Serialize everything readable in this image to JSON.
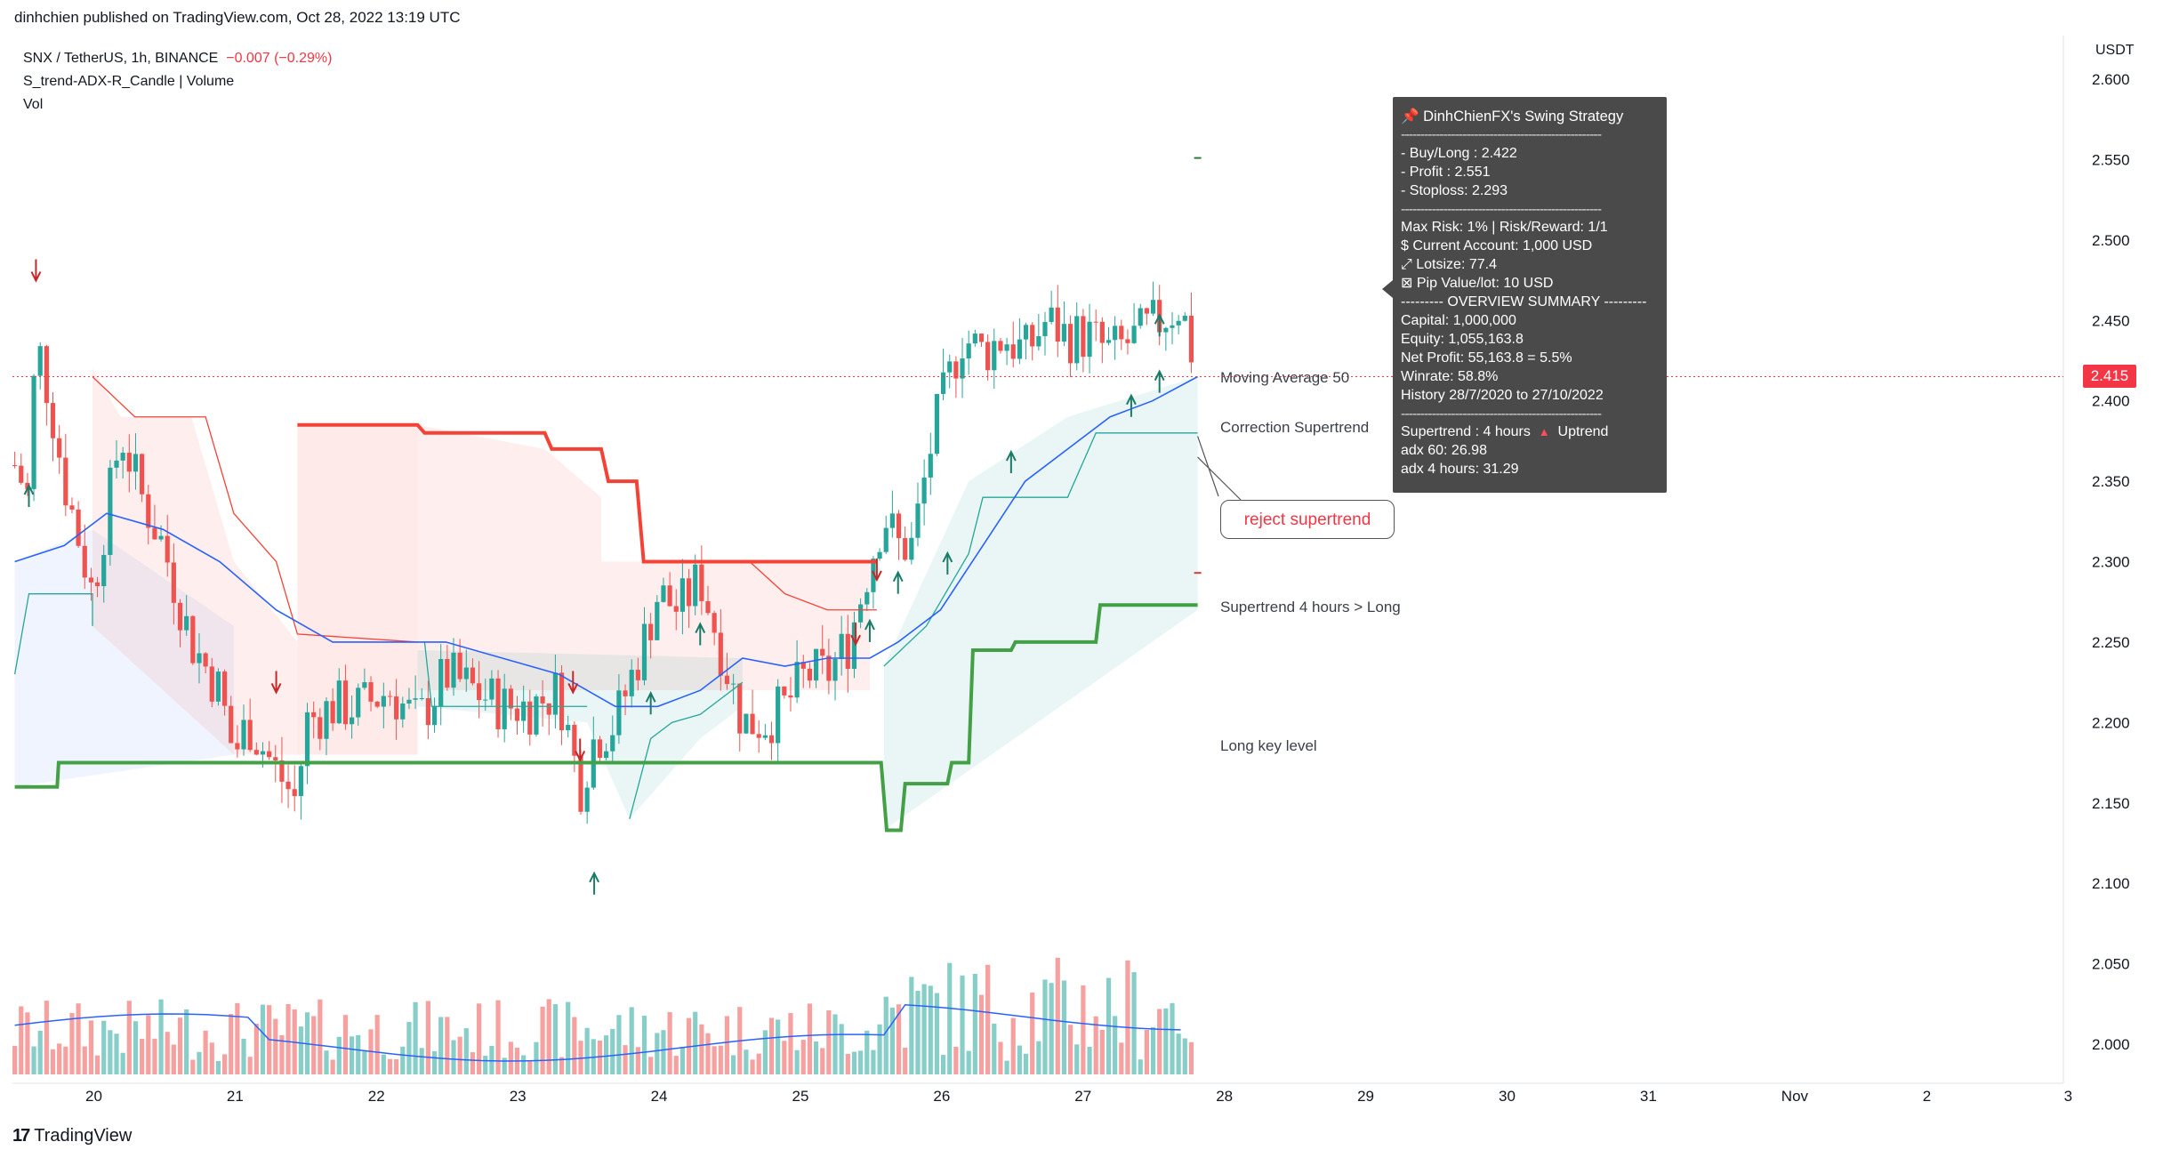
{
  "header": {
    "publisher_text": "dinhchien published on TradingView.com, Oct 28, 2022 13:19 UTC"
  },
  "legend": {
    "symbol": "SNX / TetherUS, 1h, BINANCE",
    "change": "−0.007 (−0.29%)",
    "indicator": "S_trend-ADX-R_Candle | Volume",
    "vol_label": "Vol"
  },
  "axis": {
    "currency": "USDT"
  },
  "info_box": {
    "title": "DinhChienFX's Swing Strategy",
    "sep1": "----------------------------------------------------",
    "buy": "- Buy/Long   : 2.422",
    "profit": "- Profit  : 2.551",
    "stoploss": "- Stoploss: 2.293",
    "sep2": "----------------------------------------------------",
    "risk": "Max Risk: 1% | Risk/Reward: 1/1",
    "account": "$ Current Account: 1,000 USD",
    "lotsize": "⤢ Lotsize: 77.4",
    "pip": "⊠ Pip Value/lot: 10 USD",
    "overview": "--------- OVERVIEW SUMMARY ---------",
    "capital": "Capital: 1,000,000",
    "equity": "Equity: 1,055,163.8",
    "netprofit": "Net Profit: 55,163.8 = 5.5%",
    "winrate": "Winrate: 58.8%",
    "history": "History 28/7/2020 to 27/10/2022",
    "sep3": "----------------------------------------------------",
    "supertrend_label": "Supertrend : 4 hours",
    "supertrend_dir": "Uptrend",
    "adx60": "adx 60: 26.98",
    "adx4h": "adx 4 hours: 31.29"
  },
  "callout": {
    "text": "reject supertrend"
  },
  "price_badge": {
    "value": "2.415"
  },
  "brand": {
    "name": "TradingView"
  },
  "colors": {
    "up": "#26a69a",
    "down": "#ef5350",
    "ma": "#2962ff",
    "supertrend_up": "#43a047",
    "supertrend_down": "#f44336"
  },
  "chart_data": {
    "type": "candlestick",
    "title": "SNX / TetherUS, 1h, BINANCE",
    "y_axis": {
      "ticks": [
        2.0,
        2.05,
        2.1,
        2.15,
        2.2,
        2.25,
        2.3,
        2.35,
        2.4,
        2.45,
        2.5,
        2.55,
        2.6
      ],
      "ylim": [
        1.98,
        2.605
      ]
    },
    "x_axis": {
      "ticks": [
        "20",
        "21",
        "22",
        "23",
        "24",
        "25",
        "26",
        "27",
        "28",
        "29",
        "30",
        "31",
        "Nov",
        "2",
        "3"
      ],
      "xlim_days": [
        19.45,
        34.2
      ]
    },
    "last_price": 2.415,
    "close_series": {
      "x": [
        19.45,
        19.55,
        19.6,
        19.7,
        19.8,
        20.0,
        20.2,
        20.35,
        20.5,
        20.7,
        20.9,
        21.0,
        21.1,
        21.3,
        21.45,
        21.5,
        21.7,
        21.9,
        22.1,
        22.3,
        22.5,
        22.7,
        22.9,
        23.1,
        23.3,
        23.45,
        23.55,
        23.7,
        23.9,
        24.0,
        24.15,
        24.3,
        24.5,
        24.6,
        24.75,
        24.9,
        25.05,
        25.2,
        25.35,
        25.5,
        25.6,
        25.7,
        25.8,
        25.95,
        26.05,
        26.15,
        26.3,
        26.45,
        26.6,
        26.75,
        26.9,
        27.05,
        27.2,
        27.4,
        27.55,
        27.7,
        27.82
      ],
      "y": [
        2.36,
        2.34,
        2.44,
        2.4,
        2.35,
        2.28,
        2.38,
        2.34,
        2.31,
        2.25,
        2.22,
        2.18,
        2.2,
        2.17,
        2.15,
        2.2,
        2.21,
        2.21,
        2.22,
        2.2,
        2.23,
        2.22,
        2.21,
        2.21,
        2.22,
        2.16,
        2.19,
        2.2,
        2.25,
        2.28,
        2.27,
        2.29,
        2.23,
        2.2,
        2.2,
        2.21,
        2.23,
        2.23,
        2.25,
        2.3,
        2.33,
        2.31,
        2.31,
        2.38,
        2.41,
        2.44,
        2.43,
        2.44,
        2.43,
        2.45,
        2.44,
        2.44,
        2.43,
        2.44,
        2.45,
        2.46,
        2.415
      ]
    },
    "series": [
      {
        "name": "Moving Average 50",
        "x": [
          19.45,
          19.8,
          20.1,
          20.5,
          20.9,
          21.3,
          21.7,
          22.1,
          22.5,
          22.9,
          23.3,
          23.7,
          24.0,
          24.3,
          24.6,
          24.9,
          25.2,
          25.5,
          25.7,
          26.0,
          26.3,
          26.6,
          26.9,
          27.2,
          27.5,
          27.82
        ],
        "values": [
          2.3,
          2.31,
          2.33,
          2.32,
          2.3,
          2.27,
          2.25,
          2.25,
          2.25,
          2.24,
          2.23,
          2.21,
          2.21,
          2.22,
          2.24,
          2.235,
          2.24,
          2.24,
          2.25,
          2.27,
          2.31,
          2.35,
          2.37,
          2.39,
          2.4,
          2.415
        ]
      },
      {
        "name": "Correction Supertrend",
        "values_note": "trailing stop band"
      },
      {
        "name": "Supertrend 4 hours",
        "x": [
          19.45,
          19.75,
          19.76,
          25.58,
          25.62,
          25.72,
          25.75,
          26.05,
          26.08,
          26.2,
          26.23,
          26.5,
          26.53,
          27.1,
          27.13,
          27.82
        ],
        "values": [
          2.16,
          2.16,
          2.175,
          2.175,
          2.133,
          2.133,
          2.162,
          2.162,
          2.175,
          2.175,
          2.245,
          2.245,
          2.25,
          2.25,
          2.273,
          2.273
        ]
      }
    ],
    "annotations": [
      "Moving Average 50",
      "Correction Supertrend",
      "Supertrend 4 hours > Long",
      "Long key level",
      "reject supertrend"
    ],
    "volume_ma_note": "Volume histogram with moving average"
  }
}
